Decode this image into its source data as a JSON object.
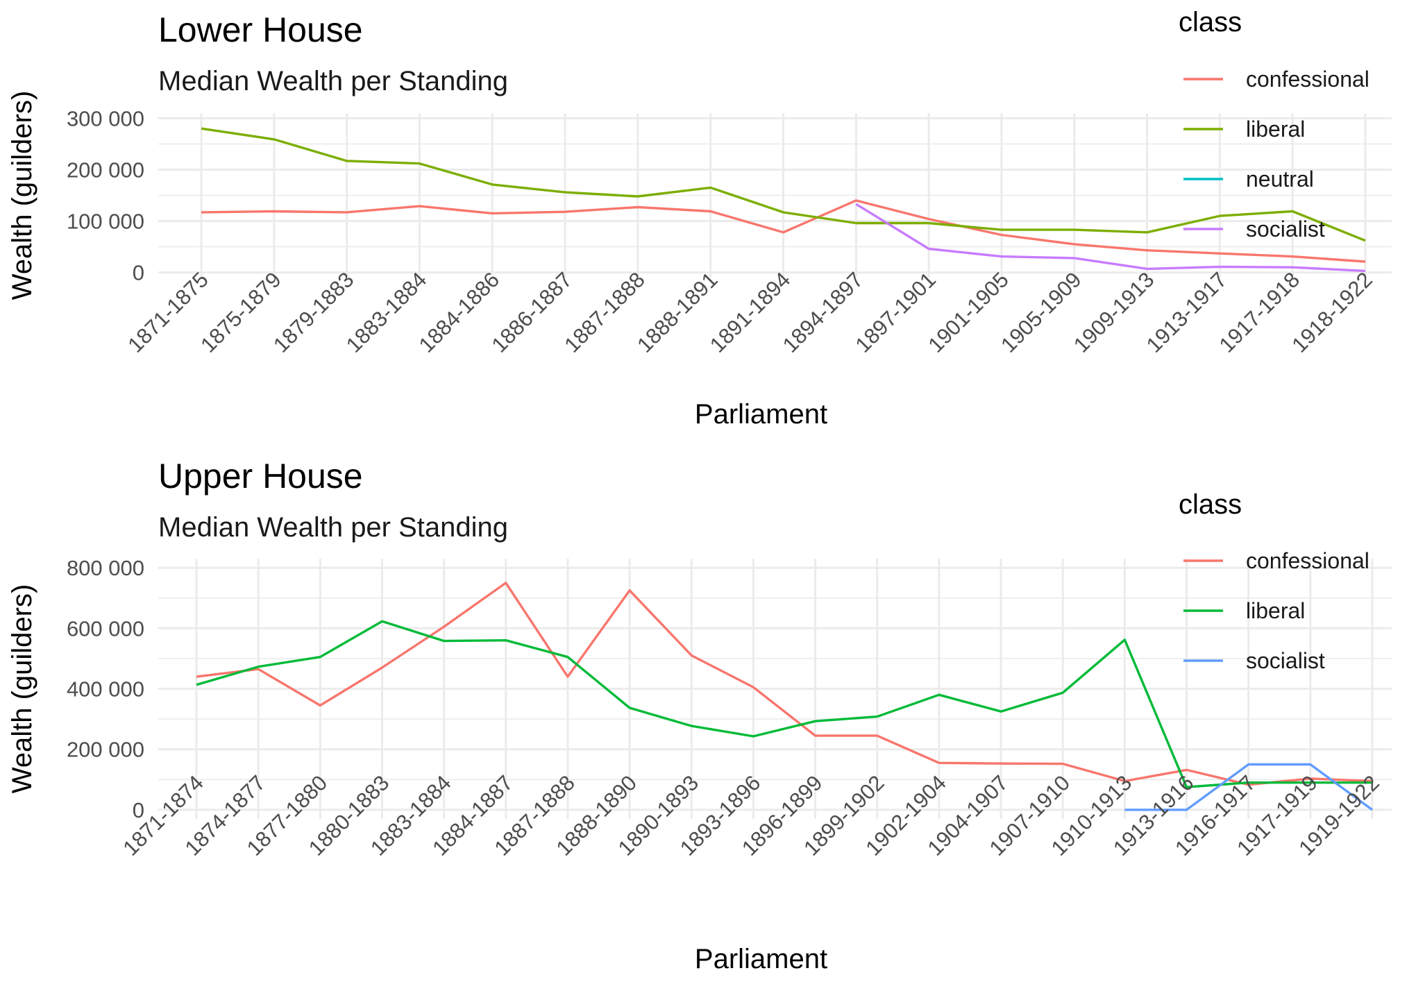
{
  "chart_data": [
    {
      "type": "line",
      "title": "Lower House",
      "subtitle": "Median Wealth per Standing",
      "xlabel": "Parliament",
      "ylabel": "Wealth (guilders)",
      "ylim": [
        -10000,
        310000
      ],
      "yticks": [
        0,
        100000,
        200000,
        300000
      ],
      "ytick_labels": [
        "0",
        "100 000",
        "200 000",
        "300 000"
      ],
      "grid": true,
      "legend": {
        "title": "class",
        "position": "right",
        "entries": [
          "confessional",
          "liberal",
          "neutral",
          "socialist"
        ]
      },
      "categories": [
        "1871-1875",
        "1875-1879",
        "1879-1883",
        "1883-1884",
        "1884-1886",
        "1886-1887",
        "1887-1888",
        "1888-1891",
        "1891-1894",
        "1894-1897",
        "1897-1901",
        "1901-1905",
        "1905-1909",
        "1909-1913",
        "1913-1917",
        "1917-1918",
        "1918-1922"
      ],
      "series": [
        {
          "name": "confessional",
          "color": "#F8766D",
          "values": [
            117000,
            119000,
            117000,
            129000,
            115000,
            118000,
            127000,
            119000,
            78000,
            140000,
            104000,
            73000,
            55000,
            43000,
            37000,
            31000,
            21000
          ]
        },
        {
          "name": "liberal",
          "color": "#7CAE00",
          "values": [
            280000,
            259000,
            217000,
            212000,
            171000,
            156000,
            148000,
            165000,
            117000,
            96000,
            96000,
            83000,
            83000,
            78000,
            110000,
            119000,
            62000
          ]
        },
        {
          "name": "neutral",
          "color": "#00BFC4",
          "values": [
            null,
            null,
            null,
            null,
            null,
            null,
            null,
            null,
            null,
            null,
            null,
            null,
            null,
            null,
            null,
            null,
            null
          ]
        },
        {
          "name": "socialist",
          "color": "#C77CFF",
          "values": [
            null,
            null,
            null,
            null,
            null,
            null,
            null,
            null,
            null,
            133000,
            46000,
            31000,
            28000,
            7000,
            11000,
            10000,
            3000
          ]
        }
      ]
    },
    {
      "type": "line",
      "title": "Upper House",
      "subtitle": "Median Wealth per Standing",
      "xlabel": "Parliament",
      "ylabel": "Wealth (guilders)",
      "ylim": [
        -30000,
        830000
      ],
      "yticks": [
        0,
        200000,
        400000,
        600000,
        800000
      ],
      "ytick_labels": [
        "0",
        "200 000",
        "400 000",
        "600 000",
        "800 000"
      ],
      "grid": true,
      "legend": {
        "title": "class",
        "position": "right",
        "entries": [
          "confessional",
          "liberal",
          "socialist"
        ]
      },
      "categories": [
        "1871-1874",
        "1874-1877",
        "1877-1880",
        "1880-1883",
        "1883-1884",
        "1884-1887",
        "1887-1888",
        "1888-1890",
        "1890-1893",
        "1893-1896",
        "1896-1899",
        "1899-1902",
        "1902-1904",
        "1904-1907",
        "1907-1910",
        "1910-1913",
        "1913-1916",
        "1916-1917",
        "1917-1919",
        "1919-1922"
      ],
      "series": [
        {
          "name": "confessional",
          "color": "#F8766D",
          "values": [
            440000,
            465000,
            345000,
            470000,
            605000,
            750000,
            440000,
            725000,
            510000,
            405000,
            245000,
            245000,
            155000,
            153000,
            152000,
            95000,
            132000,
            83000,
            103000,
            95000
          ]
        },
        {
          "name": "liberal",
          "color": "#00BA38",
          "values": [
            413000,
            473000,
            505000,
            623000,
            558000,
            560000,
            505000,
            337000,
            277000,
            243000,
            293000,
            308000,
            380000,
            325000,
            387000,
            562000,
            75000,
            90000,
            90000,
            90000
          ]
        },
        {
          "name": "socialist",
          "color": "#619CFF",
          "values": [
            null,
            null,
            null,
            null,
            null,
            null,
            null,
            null,
            null,
            null,
            null,
            null,
            null,
            null,
            null,
            0,
            0,
            150000,
            150000,
            0
          ]
        }
      ]
    }
  ]
}
